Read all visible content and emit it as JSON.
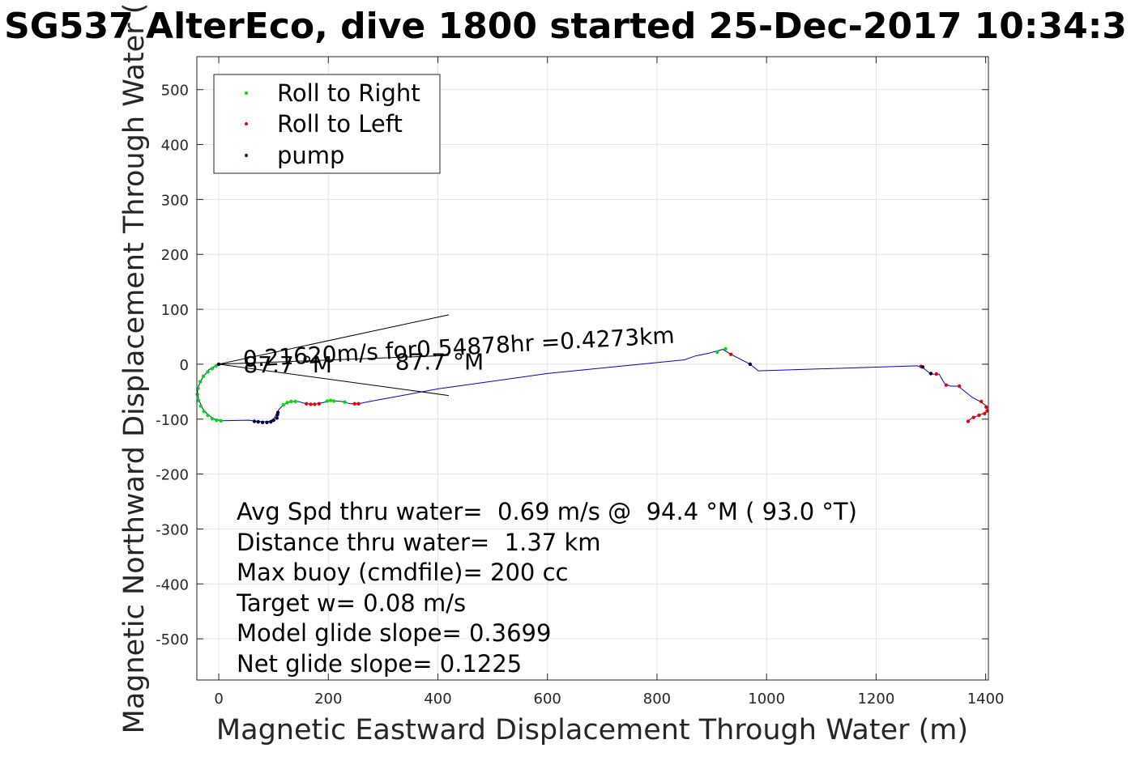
{
  "chart_data": {
    "type": "scatter",
    "title": "SG537 AlterEco, dive 1800 started 25-Dec-2017 10:34:3",
    "xlabel": "Magnetic Eastward Displacement Through Water (m)",
    "ylabel": "Magnetic Northward Displacement Through Water (",
    "xlim": [
      -40,
      1405
    ],
    "ylim": [
      -575,
      560
    ],
    "xticks": [
      0,
      200,
      400,
      600,
      800,
      1000,
      1200,
      1400
    ],
    "yticks": [
      -500,
      -400,
      -300,
      -200,
      -100,
      0,
      100,
      200,
      300,
      400,
      500
    ],
    "grid": true,
    "legend": {
      "placement": "top-left",
      "entries": [
        {
          "label": "Roll to Right",
          "color": "#00dd00"
        },
        {
          "label": "Roll to Left",
          "color": "#ee0000"
        },
        {
          "label": "pump",
          "color": "#000033"
        }
      ]
    },
    "track": {
      "color": "#0000cc",
      "points": [
        [
          0,
          0
        ],
        [
          -18,
          -10
        ],
        [
          -30,
          -25
        ],
        [
          -37,
          -40
        ],
        [
          -39,
          -50
        ],
        [
          -37,
          -63
        ],
        [
          -30,
          -80
        ],
        [
          -20,
          -92
        ],
        [
          -8,
          -100
        ],
        [
          5,
          -103
        ],
        [
          55,
          -102
        ],
        [
          70,
          -104
        ],
        [
          90,
          -105
        ],
        [
          100,
          -100
        ],
        [
          106,
          -90
        ],
        [
          110,
          -82
        ],
        [
          118,
          -74
        ],
        [
          130,
          -68
        ],
        [
          145,
          -68
        ],
        [
          160,
          -72
        ],
        [
          175,
          -73
        ],
        [
          190,
          -70
        ],
        [
          205,
          -66
        ],
        [
          225,
          -68
        ],
        [
          240,
          -72
        ],
        [
          255,
          -72
        ],
        [
          275,
          -68
        ],
        [
          400,
          -45
        ],
        [
          600,
          -17
        ],
        [
          850,
          8
        ],
        [
          870,
          15
        ],
        [
          895,
          20
        ],
        [
          920,
          27
        ],
        [
          935,
          18
        ],
        [
          970,
          0
        ],
        [
          985,
          -12
        ],
        [
          1275,
          -3
        ],
        [
          1285,
          -6
        ],
        [
          1300,
          -18
        ],
        [
          1315,
          -18
        ],
        [
          1325,
          -35
        ],
        [
          1335,
          -40
        ],
        [
          1350,
          -40
        ],
        [
          1375,
          -60
        ],
        [
          1390,
          -68
        ],
        [
          1400,
          -75
        ],
        [
          1403,
          -82
        ],
        [
          1400,
          -88
        ],
        [
          1390,
          -92
        ],
        [
          1375,
          -98
        ],
        [
          1365,
          -105
        ]
      ]
    },
    "series": [
      {
        "name": "Roll to Right",
        "color": "#00dd00",
        "x": [
          -5,
          -12,
          -20,
          -28,
          -34,
          -38,
          -39,
          -37,
          -33,
          -27,
          -20,
          -12,
          -4,
          4,
          118,
          125,
          132,
          140,
          198,
          204,
          210,
          230,
          910,
          925
        ],
        "y": [
          -3,
          -8,
          -14,
          -22,
          -32,
          -44,
          -55,
          -66,
          -76,
          -86,
          -93,
          -99,
          -102,
          -103,
          -74,
          -70,
          -68,
          -68,
          -67,
          -66,
          -67,
          -69,
          22,
          28
        ]
      },
      {
        "name": "Roll to Left",
        "color": "#ee0000",
        "x": [
          160,
          168,
          175,
          183,
          248,
          255,
          935,
          1282,
          1310,
          1328,
          1352,
          1392,
          1401,
          1403,
          1398,
          1388,
          1378,
          1368
        ],
        "y": [
          -72,
          -73,
          -73,
          -72,
          -72,
          -72,
          18,
          -4,
          -18,
          -38,
          -40,
          -68,
          -78,
          -85,
          -90,
          -93,
          -97,
          -104
        ],
        "y_note": "red markers"
      },
      {
        "name": "pump",
        "color": "#000033",
        "x": [
          0,
          65,
          72,
          80,
          88,
          95,
          100,
          106,
          107,
          108,
          970,
          1285,
          1300
        ],
        "y": [
          0,
          -104,
          -105,
          -106,
          -106,
          -105,
          -102,
          -98,
          -92,
          -88,
          0,
          -5,
          -17
        ]
      }
    ],
    "annotation": {
      "speed_text": "0.21620m/s for0.54878hr =0.4273km",
      "heading_label_left": "87.7 °M",
      "heading_label_right": "87.7 °M",
      "arrow_lines": [
        {
          "from": [
            0,
            0
          ],
          "to": [
            420,
            90
          ]
        },
        {
          "from": [
            0,
            0
          ],
          "to": [
            420,
            -57
          ]
        },
        {
          "from": [
            0,
            0
          ],
          "to": [
            420,
            16
          ]
        }
      ]
    },
    "stats": [
      "Avg Spd thru water=  0.69 m/s @  94.4 °M ( 93.0 °T)",
      "Distance thru water=  1.37 km",
      "Max buoy (cmdfile)= 200 cc",
      "Target w= 0.08 m/s",
      "Model glide slope= 0.3699",
      "Net glide slope= 0.1225"
    ]
  }
}
